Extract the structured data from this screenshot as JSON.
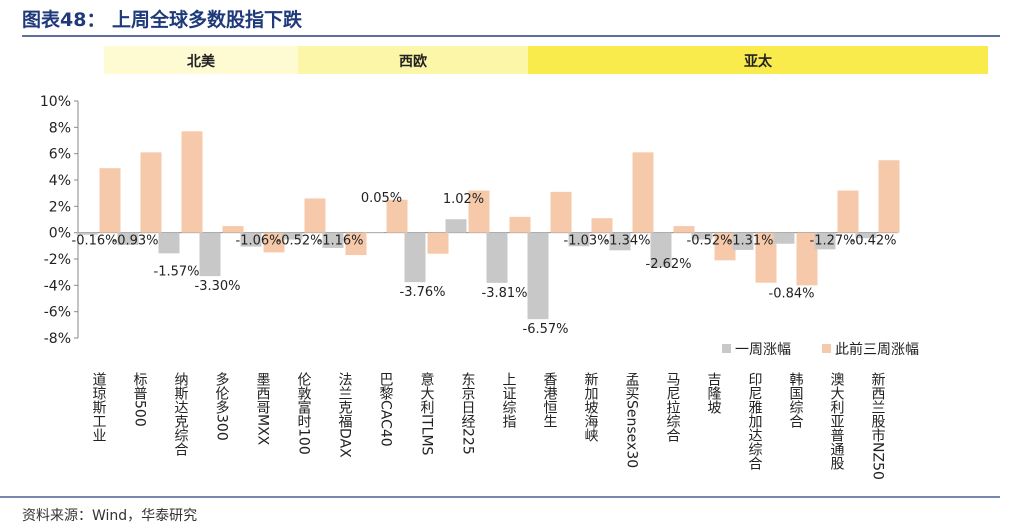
{
  "title": "图表48：  上周全球多数股指下跌",
  "source": "资料来源：Wind，华泰研究",
  "colors": {
    "title": "#1f3a7a",
    "week_series": "#c8c8c8",
    "prior_series": "#f7c9ab",
    "region_north_america": "#fefbd2",
    "region_western_europe": "#fcf6a8",
    "region_asia_pacific": "#f9eb4b",
    "rule": "#2b3f7c"
  },
  "regions": [
    {
      "label": "北美",
      "start": 0,
      "end": 4
    },
    {
      "label": "西欧",
      "start": 5,
      "end": 10
    },
    {
      "label": "亚太",
      "start": 11,
      "end": 19
    }
  ],
  "chart_data": {
    "type": "bar",
    "categories": [
      "道琼斯工业",
      "标普500",
      "纳斯达克综合",
      "多伦多300",
      "墨西哥MXX",
      "伦敦富时100",
      "法兰克福DAX",
      "巴黎CAC40",
      "意大利ITLMS",
      "东京日经225",
      "上证综指",
      "香港恒生",
      "新加坡海峡",
      "孟买Sensex30",
      "马尼拉综合",
      "吉隆坡",
      "印尼雅加达综合",
      "韩国综合",
      "澳大利亚普通股",
      "新西兰股市NZ50"
    ],
    "series": [
      {
        "name": "一周涨幅",
        "values": [
          -0.16,
          -0.93,
          -1.57,
          -3.3,
          -1.06,
          -0.52,
          -1.16,
          0.05,
          -3.76,
          1.02,
          -3.81,
          -6.57,
          -1.03,
          -1.34,
          -2.62,
          -0.52,
          -1.31,
          -0.84,
          -1.27,
          -0.42
        ]
      },
      {
        "name": "此前三周涨幅",
        "values": [
          4.9,
          6.1,
          7.7,
          0.5,
          -1.5,
          2.6,
          -1.7,
          2.5,
          -1.6,
          3.2,
          1.2,
          3.1,
          1.1,
          6.1,
          0.5,
          -2.1,
          -3.8,
          -4.0,
          3.2,
          5.5
        ]
      }
    ],
    "data_labels": [
      "-0.16%",
      "-0.93%",
      "-1.57%",
      "-3.30%",
      "-1.06%",
      "-0.52%",
      "-1.16%",
      "0.05%",
      "-3.76%",
      "1.02%",
      "-3.81%",
      "-6.57%",
      "-1.03%",
      "-1.34%",
      "-2.62%",
      "-0.52%",
      "-1.31%",
      "-0.84%",
      "-1.27%",
      "-0.42%"
    ],
    "yticks": [
      "10%",
      "8%",
      "6%",
      "4%",
      "2%",
      "0%",
      "-2%",
      "-4%",
      "-6%",
      "-8%"
    ],
    "ylim": [
      -8,
      10
    ],
    "legend": [
      "一周涨幅",
      "此前三周涨幅"
    ],
    "legend_position": "right",
    "grid": false
  }
}
